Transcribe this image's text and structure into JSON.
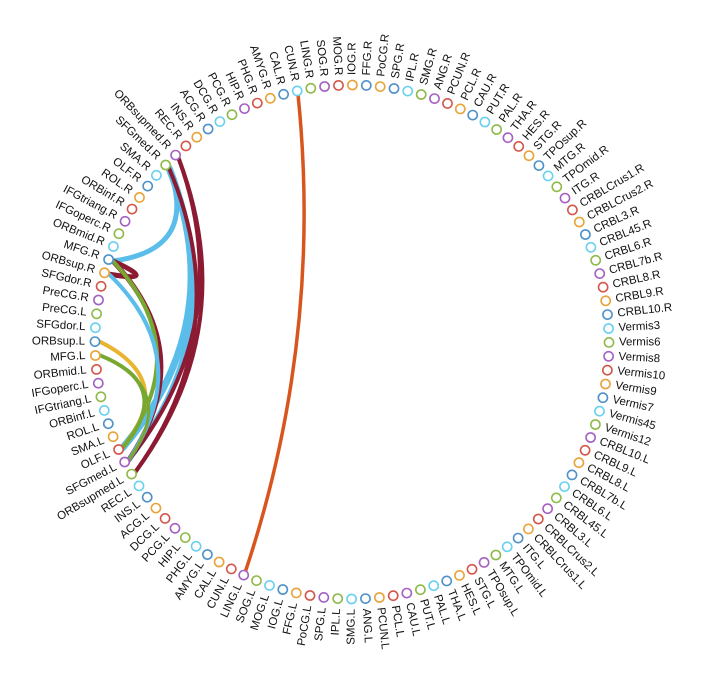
{
  "diagram": {
    "type": "connectogram",
    "node_colors": [
      "#e8a33a",
      "#4f91c9",
      "#6ad0ef",
      "#8fba4a",
      "#a461c2",
      "#d4564a"
    ],
    "edge_colors": {
      "red": "#8b1a32",
      "blue": "#5bbde9",
      "green": "#78a832",
      "yellow": "#e9b42f",
      "orange": "#d8561e"
    },
    "nodes": [
      "PoCG.R",
      "SPG.R",
      "IPL.R",
      "SMG.R",
      "ANG.R",
      "PCUN.R",
      "PCL.R",
      "CAU.R",
      "PUT.R",
      "PAL.R",
      "THA.R",
      "HES.R",
      "STG.R",
      "TPOsup.R",
      "MTG.R",
      "TPOmid.R",
      "ITG.R",
      "CRBLCrus1.R",
      "CRBLCrus2.R",
      "CRBL3.R",
      "CRBL45.R",
      "CRBL6.R",
      "CRBL7b.R",
      "CRBL8.R",
      "CRBL9.R",
      "CRBL10.R",
      "Vermis3",
      "Vermis6",
      "Vermis8",
      "Vermis10",
      "Vermis9",
      "Vermis7",
      "Vermis45",
      "Vermis12",
      "CRBL10.L",
      "CRBL9.L",
      "CRBL8.L",
      "CRBL7b.L",
      "CRBL6.L",
      "CRBL45.L",
      "CRBL3.L",
      "CRBLCrus2.L",
      "CRBLCrus1.L",
      "ITG.L",
      "TPOmid.L",
      "MTG.L",
      "TPOsup.L",
      "STG.L",
      "HES.L",
      "THA.L",
      "PAL.L",
      "PUT.L",
      "CAU.L",
      "PCL.L",
      "PCUN.L",
      "ANG.L",
      "SMG.L",
      "IPL.L",
      "SPG.L",
      "PoCG.L",
      "FFG.L",
      "IOG.L",
      "MOG.L",
      "SOG.L",
      "LING.L",
      "CUN.L",
      "CAL.L",
      "AMYG.L",
      "PHG.L",
      "HIP.L",
      "PCG.L",
      "DCG.L",
      "ACG.L",
      "INS.L",
      "REC.L",
      "ORBsupmed.L",
      "SFGmed.L",
      "OLF.L",
      "SMA.L",
      "ROL.L",
      "ORBinf.L",
      "IFGtriang.L",
      "IFGoperc.L",
      "ORBmid.L",
      "MFG.L",
      "ORBsup.L",
      "SFGdor.L",
      "PreCG.L",
      "PreCG.R",
      "SFGdor.R",
      "ORBsup.R",
      "MFG.R",
      "ORBmid.R",
      "IFGoperc.R",
      "IFGtriang.R",
      "ORBinf.R",
      "ROL.R",
      "OLF.R",
      "SMA.R",
      "SFGmed.R",
      "ORBsupmed.R",
      "REC.R",
      "INS.R",
      "ACG.R",
      "DCG.R",
      "PCG.R",
      "HIP.R",
      "PHG.R",
      "AMYG.R",
      "CAL.R",
      "CUN.R",
      "LING.R",
      "SOG.R",
      "MOG.R",
      "IOG.R",
      "FFG.R"
    ],
    "edges": [
      {
        "from": "CUN.R",
        "to": "LING.L",
        "color": "orange",
        "width": 3.5
      },
      {
        "from": "SFGmed.R",
        "to": "MFG.R",
        "color": "blue",
        "width": 5
      },
      {
        "from": "SFGmed.R",
        "to": "OLF.L",
        "color": "blue",
        "width": 7
      },
      {
        "from": "SFGmed.R",
        "to": "SFGmed.L",
        "color": "blue",
        "width": 5
      },
      {
        "from": "SFGmed.R",
        "to": "ORBsupmed.L",
        "color": "red",
        "width": 4
      },
      {
        "from": "ORBsupmed.R",
        "to": "SFGmed.L",
        "color": "red",
        "width": 4
      },
      {
        "from": "ORBsupmed.R",
        "to": "ORBsupmed.L",
        "color": "red",
        "width": 4
      },
      {
        "from": "MFG.R",
        "to": "ORBsup.R",
        "color": "red",
        "width": 5
      },
      {
        "from": "MFG.R",
        "to": "SFGmed.L",
        "color": "red",
        "width": 5
      },
      {
        "from": "MFG.R",
        "to": "OLF.L",
        "color": "green",
        "width": 4
      },
      {
        "from": "ORBsup.R",
        "to": "SFGmed.L",
        "color": "blue",
        "width": 4
      },
      {
        "from": "ORBsup.L",
        "to": "OLF.L",
        "color": "yellow",
        "width": 4
      },
      {
        "from": "MFG.L",
        "to": "OLF.L",
        "color": "green",
        "width": 4
      },
      {
        "from": "MFG.L",
        "to": "SFGmed.L",
        "color": "green",
        "width": 3
      }
    ]
  }
}
